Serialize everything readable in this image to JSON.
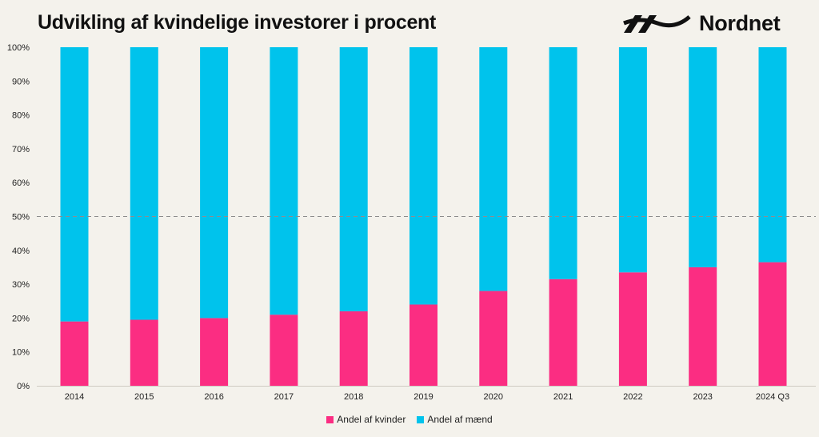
{
  "header": {
    "title": "Udvikling af kvindelige investorer i procent",
    "brand": "Nordnet"
  },
  "colors": {
    "women": "#fb2d82",
    "men": "#00c3ec",
    "background": "#f4f2ec",
    "reference_line": "#8c8c8c"
  },
  "chart_data": {
    "type": "bar",
    "stacked": true,
    "title": "Udvikling af kvindelige investorer i procent",
    "categories": [
      "2014",
      "2015",
      "2016",
      "2017",
      "2018",
      "2019",
      "2020",
      "2021",
      "2022",
      "2023",
      "2024 Q3"
    ],
    "series": [
      {
        "name": "Andel af kvinder",
        "color": "#fb2d82",
        "values": [
          19,
          19.5,
          20,
          21,
          22,
          24,
          28,
          31.5,
          33.5,
          35,
          36.5
        ]
      },
      {
        "name": "Andel af mænd",
        "color": "#00c3ec",
        "values": [
          81,
          80.5,
          80,
          79,
          78,
          76,
          72,
          68.5,
          66.5,
          65,
          63.5
        ]
      }
    ],
    "y_ticks": [
      "0%",
      "10%",
      "20%",
      "30%",
      "40%",
      "50%",
      "60%",
      "70%",
      "80%",
      "90%",
      "100%"
    ],
    "ylim": [
      0,
      100
    ],
    "reference_line": 50,
    "xlabel": "",
    "ylabel": "",
    "grid": false,
    "legend_position": "bottom-center"
  }
}
